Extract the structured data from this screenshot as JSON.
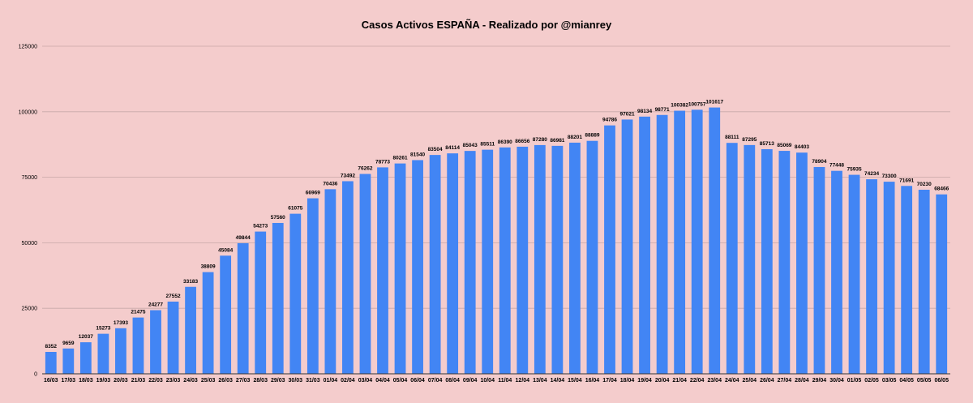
{
  "chart_data": {
    "type": "bar",
    "title": "Casos Activos ESPAÑA - Realizado por @mianrey",
    "xlabel": "",
    "ylabel": "",
    "ylim": [
      0,
      125000
    ],
    "yticks": [
      0,
      25000,
      50000,
      75000,
      100000,
      125000
    ],
    "grid": true,
    "legend": "none",
    "bar_color": "#4285f4",
    "background_color": "#f4cccc",
    "categories": [
      "16/03",
      "17/03",
      "18/03",
      "19/03",
      "20/03",
      "21/03",
      "22/03",
      "23/03",
      "24/03",
      "25/03",
      "26/03",
      "27/03",
      "28/03",
      "29/03",
      "30/03",
      "31/03",
      "01/04",
      "02/04",
      "03/04",
      "04/04",
      "05/04",
      "06/04",
      "07/04",
      "08/04",
      "09/04",
      "10/04",
      "11/04",
      "12/04",
      "13/04",
      "14/04",
      "15/04",
      "16/04",
      "17/04",
      "18/04",
      "19/04",
      "20/04",
      "21/04",
      "22/04",
      "23/04",
      "24/04",
      "25/04",
      "26/04",
      "27/04",
      "28/04",
      "29/04",
      "30/04",
      "01/05",
      "02/05",
      "03/05",
      "04/05",
      "05/05",
      "06/05"
    ],
    "values": [
      8352,
      9659,
      12037,
      15273,
      17393,
      21475,
      24277,
      27552,
      33183,
      38809,
      45084,
      49844,
      54273,
      57560,
      61075,
      66969,
      70436,
      73492,
      76262,
      78773,
      80261,
      81540,
      83504,
      84114,
      85043,
      85511,
      86390,
      86656,
      87280,
      86981,
      88201,
      88889,
      94786,
      97021,
      98134,
      98771,
      100382,
      100757,
      101617,
      88111,
      87295,
      85713,
      85069,
      84403,
      78904,
      77448,
      75935,
      74234,
      73300,
      71691,
      70230,
      68466
    ]
  }
}
